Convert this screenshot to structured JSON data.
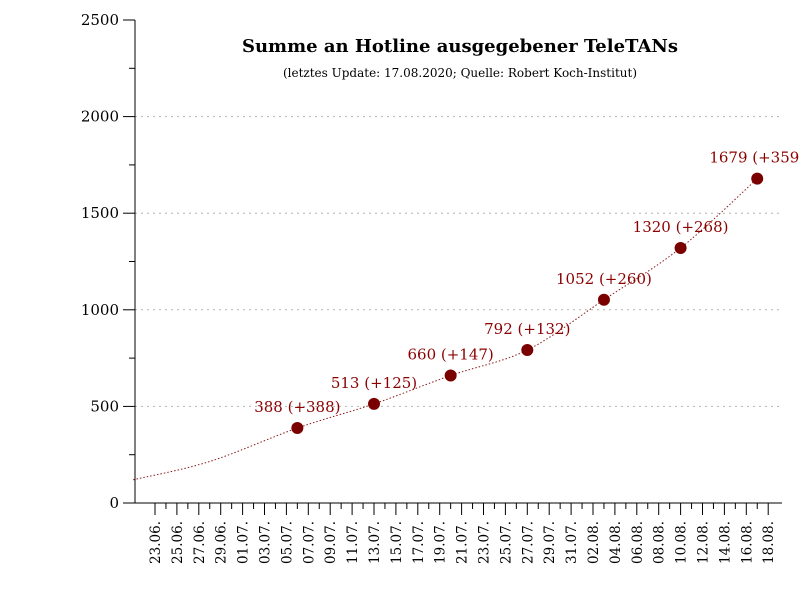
{
  "chart_data": {
    "type": "scatter",
    "title": "Summe an Hotline ausgegebener TeleTANs",
    "subtitle": "(letztes Update: 17.08.2020; Quelle: Robert Koch-Institut)",
    "xlabel": "",
    "ylabel": "",
    "ylim": [
      0,
      2500
    ],
    "yticks": [
      "0",
      "500",
      "1000",
      "1500",
      "2000",
      "2500"
    ],
    "x_ticks": [
      "23.06.",
      "25.06.",
      "27.06.",
      "29.06.",
      "01.07.",
      "03.07.",
      "05.07.",
      "07.07.",
      "09.07.",
      "11.07.",
      "13.07.",
      "15.07.",
      "17.07.",
      "19.07.",
      "21.07.",
      "23.07.",
      "25.07.",
      "27.07.",
      "29.07.",
      "31.07.",
      "02.08.",
      "04.08.",
      "06.08.",
      "08.08.",
      "10.08.",
      "12.08.",
      "14.08.",
      "16.08.",
      "18.08."
    ],
    "grid": "horizontal dotted",
    "points": [
      {
        "x": "06.07.",
        "y": 388,
        "label": "388 (+388)"
      },
      {
        "x": "13.07.",
        "y": 513,
        "label": "513 (+125)"
      },
      {
        "x": "20.07.",
        "y": 660,
        "label": "660 (+147)"
      },
      {
        "x": "27.07.",
        "y": 792,
        "label": "792 (+132)"
      },
      {
        "x": "03.08.",
        "y": 1052,
        "label": "1052 (+260)"
      },
      {
        "x": "10.08.",
        "y": 1320,
        "label": "1320 (+268)"
      },
      {
        "x": "17.08.",
        "y": 1679,
        "label": "1679 (+359)"
      }
    ],
    "trend_curve": [
      {
        "x": "21.06.",
        "y": 120
      },
      {
        "x": "28.06.",
        "y": 215
      },
      {
        "x": "06.07.",
        "y": 388
      },
      {
        "x": "13.07.",
        "y": 513
      },
      {
        "x": "20.07.",
        "y": 660
      },
      {
        "x": "27.07.",
        "y": 792
      },
      {
        "x": "03.08.",
        "y": 1052
      },
      {
        "x": "10.08.",
        "y": 1320
      },
      {
        "x": "17.08.",
        "y": 1679
      }
    ],
    "colors": {
      "points": "#7a0000",
      "labels": "#8b0000",
      "trend": "#8b1a1a",
      "grid": "#b3b3b3",
      "axis": "#000000"
    }
  }
}
